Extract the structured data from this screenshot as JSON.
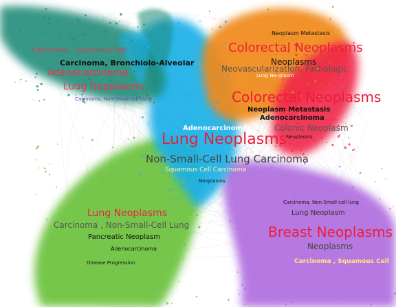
{
  "colors": {
    "teal": "#1f8a78",
    "blue": "#1eb0e8",
    "orange": "#f08a1e",
    "red": "#f0284a",
    "green": "#6cc23c",
    "purple": "#b06ee0"
  },
  "teal_cluster": {
    "carcinoma_squamous": "Carcinoma , Squamous Cell",
    "carcinoma_bronchiolo": "Carcinoma, Bronchiolo-Alveolar",
    "adenocarcinoma": "Adenocarcinoma",
    "lung_neoplasms": "Lung Neoplasms",
    "carcinoma_nsclc": "Carcinoma, Non-Small-cell Lung"
  },
  "orange_cluster": {
    "metastasis": "Neoplasm Metastasis",
    "colorectal": "Colorectal Neoplasms",
    "neoplasms": "Neoplasms",
    "neovascularization": "Neovascularization, Pathologic",
    "lung_neoplasm": "Lung Neoplasm"
  },
  "red_cluster": {
    "colorectal": "Colorectal Neoplasms",
    "metastasis": "Neoplasm Metastasis",
    "adenocarcinoma": "Adenocarcinoma",
    "colonic": "Colonic Neoplasm",
    "neoplasms": "Neoplasms"
  },
  "center_cluster": {
    "adenocarcinoma": "Adenocarcinoma",
    "lung_neoplasms": "Lung Neoplasms",
    "nsclc": "Non-Small-Cell Lung Carcinoma",
    "squamous": "Squamous Cell Carcinoma",
    "neoplasms": "Neoplasms"
  },
  "green_cluster": {
    "lung_neoplasms": "Lung Neoplasms",
    "carcinoma_nsclc": "Carcinoma , Non-Small-Cell Lung",
    "pancreatic": "Pancreatic Neoplasm",
    "adenocarcinoma": "Adenocarcinoma",
    "disease_progression": "Disease Progression"
  },
  "purple_cluster": {
    "carcinoma_nsclc": "Carcinoma, Non-Small-cell lung",
    "lung_neoplasm": "Lung Neoplasm",
    "breast": "Breast Neoplasms",
    "neoplasms": "Neoplasms",
    "squamous": "Carcinoma , Squamous Cell"
  }
}
